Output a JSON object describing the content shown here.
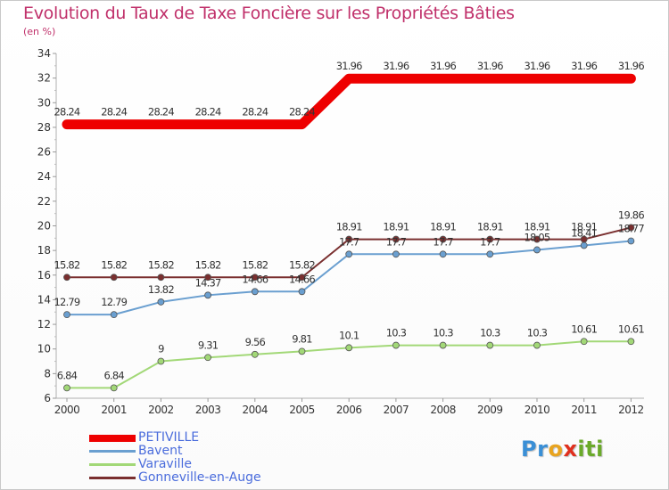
{
  "title": "Evolution du Taux de Taxe Foncière sur les Propriétés Bâties",
  "subtitle": "(en %)",
  "logo": {
    "p": "Pr",
    "o": "o",
    "x": "x",
    "iti": "iti"
  },
  "chart_data": {
    "type": "line",
    "title": "Evolution du Taux de Taxe Foncière sur les Propriétés Bâties",
    "ylabel": "(en %)",
    "xlabel": "",
    "ylim": [
      6,
      34
    ],
    "yticks": [
      6,
      8,
      10,
      12,
      14,
      16,
      18,
      20,
      22,
      24,
      26,
      28,
      30,
      32,
      34
    ],
    "categories": [
      "2000",
      "2001",
      "2002",
      "2003",
      "2004",
      "2005",
      "2006",
      "2007",
      "2008",
      "2009",
      "2010",
      "2011",
      "2012"
    ],
    "grid": false,
    "legend_position": "bottom-left",
    "series": [
      {
        "name": "PETIVILLE",
        "color": "#ee0000",
        "values": [
          28.24,
          28.24,
          28.24,
          28.24,
          28.24,
          28.24,
          31.96,
          31.96,
          31.96,
          31.96,
          31.96,
          31.96,
          31.96
        ],
        "labels": [
          "28.24",
          "28.24",
          "28.24",
          "28.24",
          "28.24",
          "28.24",
          "31.96",
          "31.96",
          "31.96",
          "31.96",
          "31.96",
          "31.96",
          "31.96"
        ]
      },
      {
        "name": "Bavent",
        "color": "#6a9fd0",
        "values": [
          12.79,
          12.79,
          13.82,
          14.37,
          14.66,
          14.66,
          17.7,
          17.7,
          17.7,
          17.7,
          18.05,
          18.41,
          18.77
        ],
        "labels": [
          "12.79",
          "12.79",
          "13.82",
          "14.37",
          "14.66",
          "14.66",
          "17.7",
          "17.7",
          "17.7",
          "17.7",
          "18.05",
          "18.41",
          "18.77"
        ]
      },
      {
        "name": "Varaville",
        "color": "#a2d877",
        "values": [
          6.84,
          6.84,
          9,
          9.31,
          9.56,
          9.81,
          10.1,
          10.3,
          10.3,
          10.3,
          10.3,
          10.61,
          10.61
        ],
        "labels": [
          "6.84",
          "6.84",
          "9",
          "9.31",
          "9.56",
          "9.81",
          "10.1",
          "10.3",
          "10.3",
          "10.3",
          "10.3",
          "10.61",
          "10.61"
        ]
      },
      {
        "name": "Gonneville-en-Auge",
        "color": "#7a2f2f",
        "values": [
          15.82,
          15.82,
          15.82,
          15.82,
          15.82,
          15.82,
          18.91,
          18.91,
          18.91,
          18.91,
          18.91,
          18.91,
          19.86
        ],
        "labels": [
          "15.82",
          "15.82",
          "15.82",
          "15.82",
          "15.82",
          "15.82",
          "18.91",
          "18.91",
          "18.91",
          "18.91",
          "18.91",
          "18.91",
          "19.86"
        ]
      }
    ]
  }
}
